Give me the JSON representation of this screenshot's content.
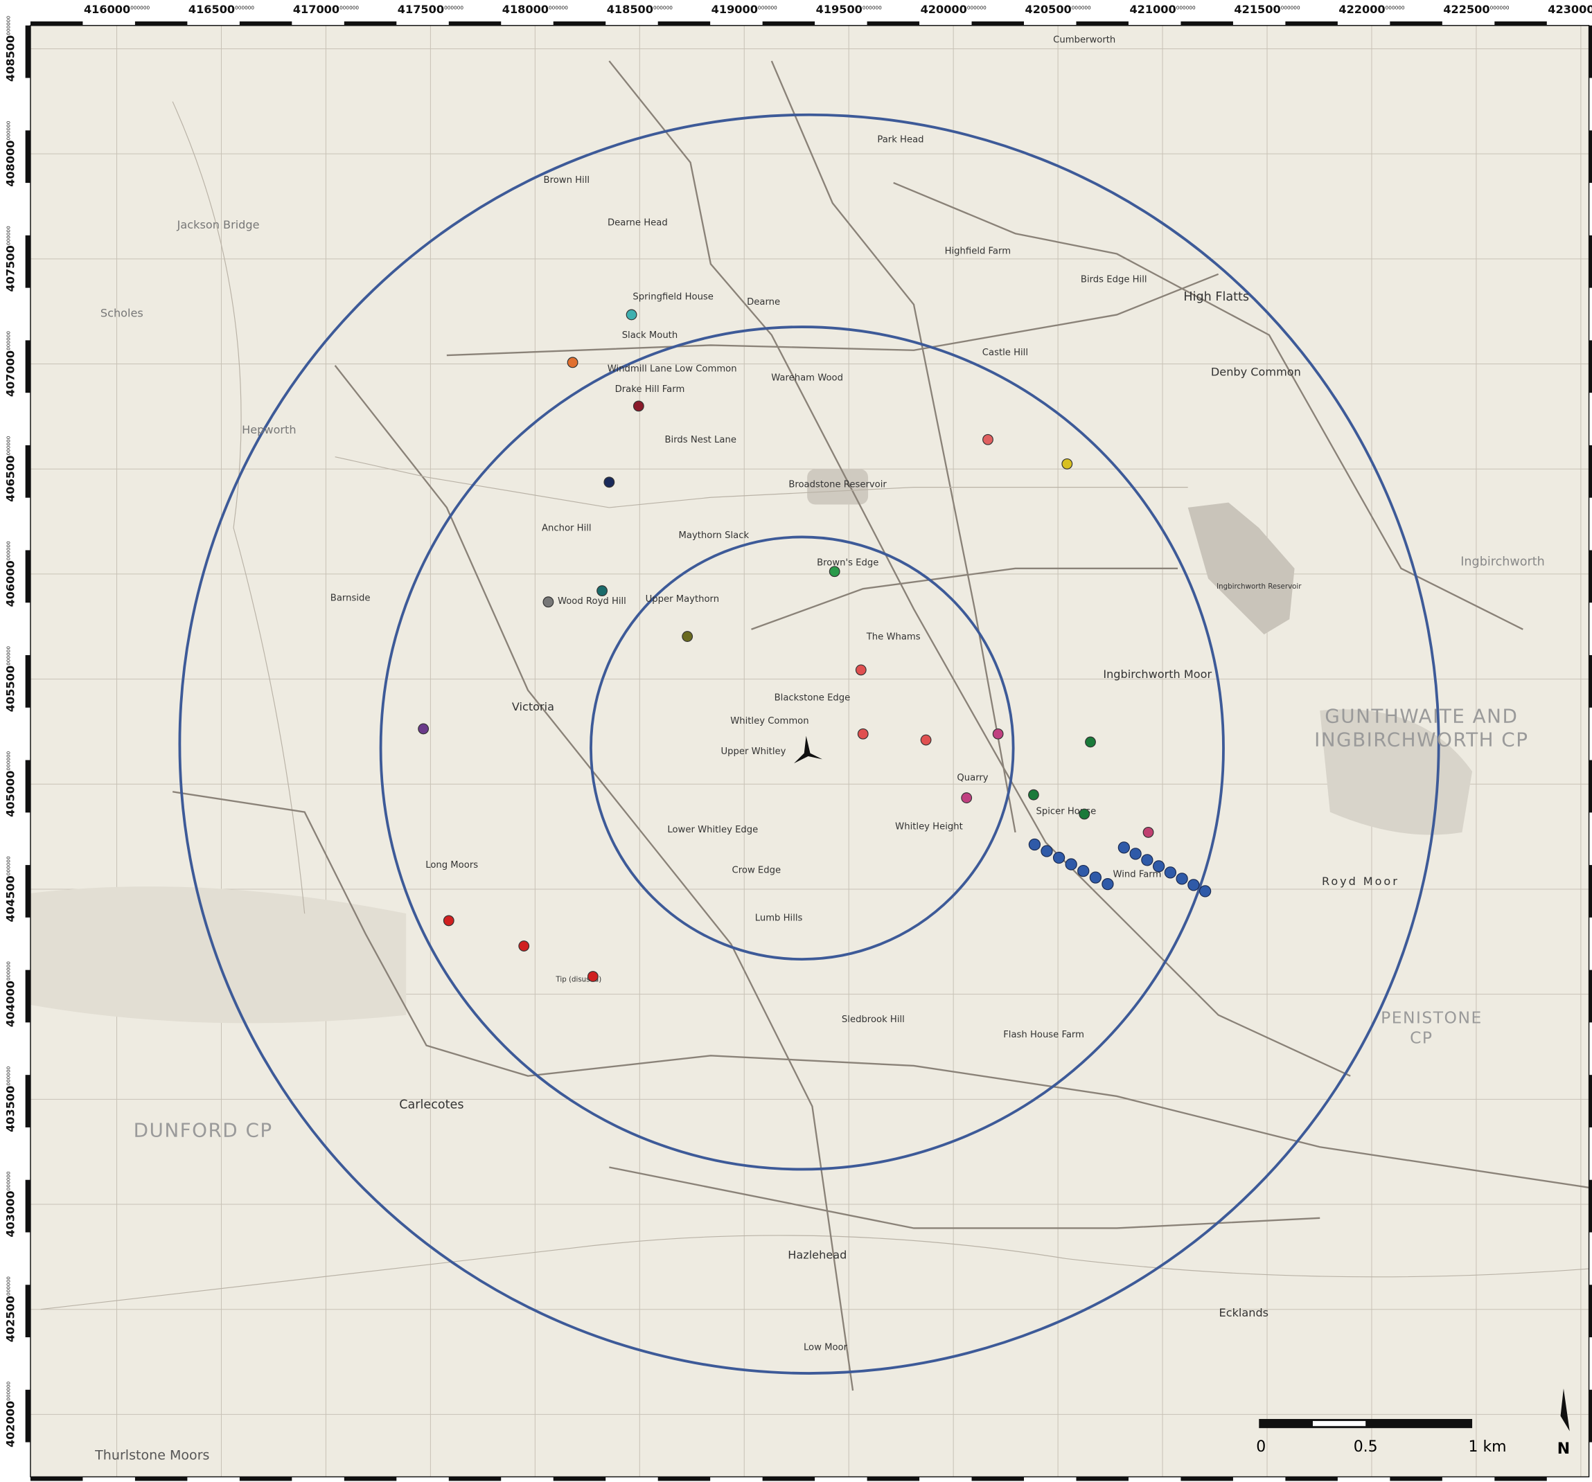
{
  "grid": {
    "x_labels": [
      "416000",
      "416500",
      "417000",
      "417500",
      "418000",
      "418500",
      "419000",
      "419500",
      "420000",
      "420500",
      "421000",
      "421500",
      "422000",
      "422500",
      "423000"
    ],
    "y_labels": [
      "408500",
      "408000",
      "407500",
      "407000",
      "406500",
      "406000",
      "405500",
      "405000",
      "404500",
      "404000",
      "403500",
      "403000",
      "402500",
      "402000"
    ],
    "label_suffix": "000000"
  },
  "places": [
    "Cumberworth",
    "Park Head",
    "Brown Hill",
    "Dearne Head",
    "Springfield House",
    "Dearne",
    "Slack Mouth",
    "Windmill Lane Low Common",
    "Drake Hill Farm",
    "Wareham Wood",
    "Broadstone Reservoir",
    "Birds Nest Lane",
    "Castle Hill",
    "High Flatts",
    "Denby Common",
    "Birds Edge Hill",
    "Highfield Farm",
    "Anchor Hill",
    "Maythorn Slack",
    "Brown's Edge",
    "Upper Maythorn",
    "Wood Royd Hill",
    "Victoria",
    "Whitley Common",
    "Upper Whitley",
    "Blackstone Edge",
    "The Whams",
    "Ingbirchworth Moor",
    "Ingbirchworth Reservoir",
    "Ingbirchworth",
    "GUNTHWAITE AND",
    "INGBIRCHWORTH CP",
    "Spicer House",
    "Wind Farm",
    "Royd Moor",
    "Long Moors",
    "Barnside",
    "Scholes",
    "Jackson Bridge",
    "Hepworth",
    "Carlecotes",
    "DUNFORD CP",
    "Hazlehead",
    "Sledbrook Hill",
    "Flash House Farm",
    "PENISTONE",
    "CP",
    "Ecklands",
    "Thurlstone Moors",
    "Low Moor",
    "Whitley Height",
    "Lower Whitley Edge",
    "Crow Edge",
    "Lumb Hills",
    "Quarry",
    "Tip (disused)"
  ],
  "scale_bar": {
    "labels": [
      "0",
      "0.5",
      "1 km"
    ]
  },
  "north": "N"
}
